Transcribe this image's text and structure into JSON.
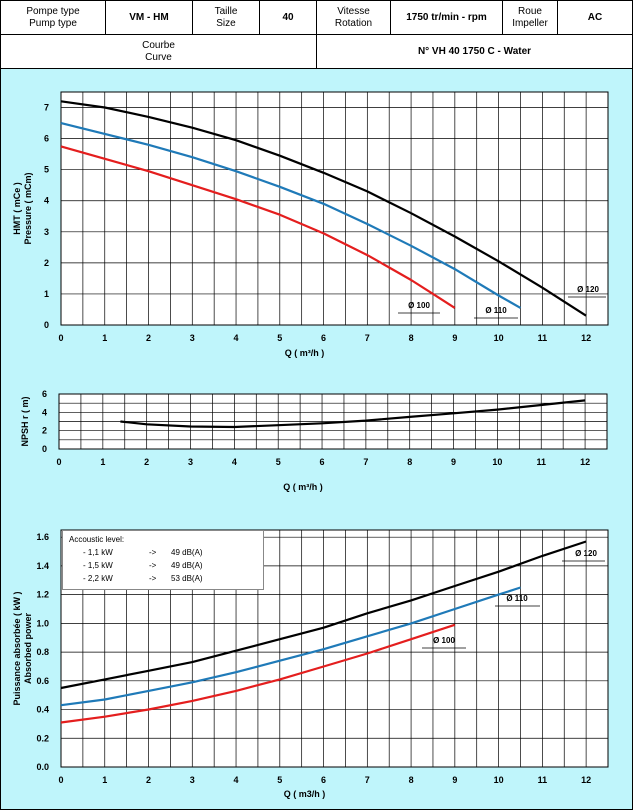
{
  "header": {
    "pump_type_label_fr": "Pompe type",
    "pump_type_label_en": "Pump type",
    "pump_type_value": "VM - HM",
    "size_label_fr": "Taille",
    "size_label_en": "Size",
    "size_value": "40",
    "speed_label_fr": "Vitesse",
    "speed_label_en": "Rotation",
    "speed_value": "1750 tr/min - rpm",
    "impeller_label_fr": "Roue",
    "impeller_label_en": "Impeller",
    "impeller_value": "AC",
    "curve_label_fr": "Courbe",
    "curve_label_en": "Curve",
    "curve_value": "N° VH 40 1750 C - Water"
  },
  "acoustic": {
    "title": "Accoustic level:",
    "rows": [
      {
        "power": "- 1,1 kW",
        "arrow": "->",
        "level": "49 dB(A)"
      },
      {
        "power": "- 1,5 kW",
        "arrow": "->",
        "level": "49 dB(A)"
      },
      {
        "power": "- 2,2 kW",
        "arrow": "->",
        "level": "53 dB(A)"
      }
    ]
  },
  "colors": {
    "d120": "#000000",
    "d110": "#1f7ab8",
    "d100": "#e41e1e",
    "background": "#bff5fb"
  },
  "chart_data": [
    {
      "type": "line",
      "xlabel": "Q ( m³/h )",
      "ylabel_lines": [
        "HMT ( mCe )",
        "Pressure ( mCm)"
      ],
      "xlim": [
        0,
        12.5
      ],
      "ylim": [
        0,
        7.5
      ],
      "xticks": [
        0,
        1,
        2,
        3,
        4,
        5,
        6,
        7,
        8,
        9,
        10,
        11,
        12
      ],
      "yticks": [
        0,
        1,
        2,
        3,
        4,
        5,
        6,
        7
      ],
      "grid": true,
      "series": [
        {
          "name": "Ø 120",
          "color": "#000000",
          "x": [
            0,
            1,
            2,
            3,
            4,
            5,
            6,
            7,
            8,
            9,
            10,
            11,
            12
          ],
          "y": [
            7.2,
            7.0,
            6.7,
            6.35,
            5.95,
            5.45,
            4.9,
            4.3,
            3.6,
            2.85,
            2.05,
            1.2,
            0.3
          ]
        },
        {
          "name": "Ø 110",
          "color": "#1f7ab8",
          "x": [
            0,
            1,
            2,
            3,
            4,
            5,
            6,
            7,
            8,
            9,
            10,
            10.5
          ],
          "y": [
            6.5,
            6.15,
            5.8,
            5.4,
            4.95,
            4.45,
            3.9,
            3.25,
            2.55,
            1.8,
            0.95,
            0.55
          ]
        },
        {
          "name": "Ø 100",
          "color": "#e41e1e",
          "x": [
            0,
            1,
            2,
            3,
            4,
            5,
            6,
            7,
            7.5,
            8,
            8.5,
            9
          ],
          "y": [
            5.75,
            5.35,
            4.95,
            4.5,
            4.05,
            3.55,
            2.95,
            2.25,
            1.85,
            1.45,
            1.0,
            0.55
          ]
        }
      ]
    },
    {
      "type": "line",
      "xlabel": "Q ( m³/h )",
      "ylabel": "NPSH r ( m)",
      "xlim": [
        0,
        12.5
      ],
      "ylim": [
        0,
        6
      ],
      "xticks": [
        0,
        1,
        2,
        3,
        4,
        5,
        6,
        7,
        8,
        9,
        10,
        11,
        12
      ],
      "yticks": [
        0,
        2,
        4,
        6
      ],
      "yminor": [
        1,
        3,
        5
      ],
      "grid": true,
      "series": [
        {
          "color": "#000000",
          "x": [
            1.4,
            2,
            3,
            4,
            5,
            6,
            7,
            8,
            9,
            10,
            11,
            12
          ],
          "y": [
            3.0,
            2.7,
            2.45,
            2.4,
            2.6,
            2.8,
            3.1,
            3.5,
            3.9,
            4.3,
            4.8,
            5.3
          ]
        }
      ]
    },
    {
      "type": "line",
      "xlabel": "Q ( m3/h )",
      "ylabel_lines": [
        "Puissance absorbée ( kW )",
        "Absorbed power"
      ],
      "xlim": [
        0,
        12.5
      ],
      "ylim": [
        0,
        1.65
      ],
      "xticks": [
        0,
        1,
        2,
        3,
        4,
        5,
        6,
        7,
        8,
        9,
        10,
        11,
        12
      ],
      "yticks": [
        0.0,
        0.2,
        0.4,
        0.6,
        0.8,
        1.0,
        1.2,
        1.4,
        1.6
      ],
      "ytick_labels": [
        "0.0",
        "0.2",
        "0.4",
        "0.6",
        "0.8",
        "1.0",
        "1.2",
        "1.4",
        "1.6"
      ],
      "grid": true,
      "series": [
        {
          "name": "Ø 120",
          "color": "#000000",
          "x": [
            0,
            1,
            2,
            3,
            4,
            5,
            6,
            7,
            8,
            9,
            10,
            11,
            12
          ],
          "y": [
            0.55,
            0.61,
            0.67,
            0.73,
            0.81,
            0.89,
            0.97,
            1.07,
            1.16,
            1.26,
            1.36,
            1.47,
            1.57
          ]
        },
        {
          "name": "Ø 110",
          "color": "#1f7ab8",
          "x": [
            0,
            1,
            2,
            3,
            4,
            5,
            6,
            7,
            8,
            9,
            10,
            10.5
          ],
          "y": [
            0.43,
            0.47,
            0.53,
            0.59,
            0.66,
            0.74,
            0.82,
            0.91,
            1.0,
            1.1,
            1.2,
            1.25
          ]
        },
        {
          "name": "Ø 100",
          "color": "#e41e1e",
          "x": [
            0,
            1,
            2,
            3,
            4,
            5,
            6,
            7,
            8,
            9
          ],
          "y": [
            0.31,
            0.35,
            0.4,
            0.46,
            0.53,
            0.61,
            0.7,
            0.79,
            0.89,
            0.99
          ]
        }
      ]
    }
  ]
}
